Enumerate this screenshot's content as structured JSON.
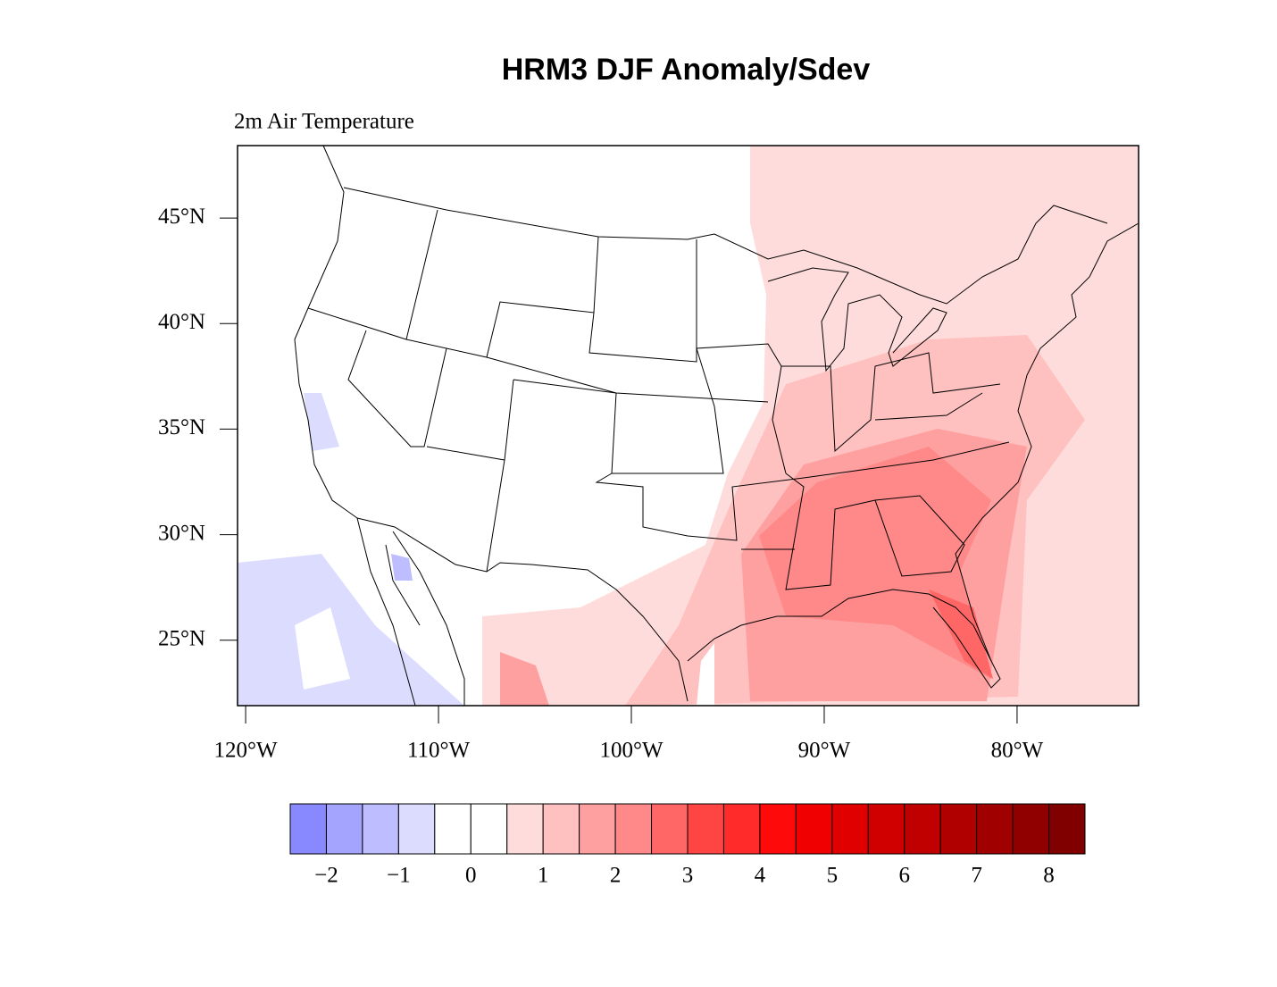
{
  "title": "HRM3 DJF Anomaly/Sdev",
  "subtitle": "2m Air Temperature",
  "map": {
    "lonlim": [
      -120.42,
      -73.7
    ],
    "latlim": [
      21.9,
      48.43
    ],
    "lat_ticks": [
      {
        "value": 45,
        "label": "45°N"
      },
      {
        "value": 40,
        "label": "40°N"
      },
      {
        "value": 35,
        "label": "35°N"
      },
      {
        "value": 30,
        "label": "30°N"
      },
      {
        "value": 25,
        "label": "25°N"
      }
    ],
    "lon_ticks": [
      {
        "value": -120,
        "label": "120°W"
      },
      {
        "value": -110,
        "label": "110°W"
      },
      {
        "value": -100,
        "label": "100°W"
      },
      {
        "value": -90,
        "label": "90°W"
      },
      {
        "value": -80,
        "label": "80°W"
      }
    ]
  },
  "colorbar": {
    "lim": [
      -2.5,
      8.5
    ],
    "colors": [
      "#8888ff",
      "#a4a4ff",
      "#bdbdff",
      "#dcdcff",
      "#ffffff",
      "#ffffff",
      "#ffdcdc",
      "#ffc0c0",
      "#ffa0a0",
      "#ff8888",
      "#ff6666",
      "#ff4444",
      "#ff2a2a",
      "#ff0a0a",
      "#f00000",
      "#e00000",
      "#d00000",
      "#c00000",
      "#b00000",
      "#a00000",
      "#900000",
      "#800000"
    ],
    "labels": [
      {
        "value": -2,
        "label": "−2"
      },
      {
        "value": -1,
        "label": "−1"
      },
      0,
      1,
      2,
      3,
      4,
      5,
      6,
      7,
      8
    ]
  }
}
